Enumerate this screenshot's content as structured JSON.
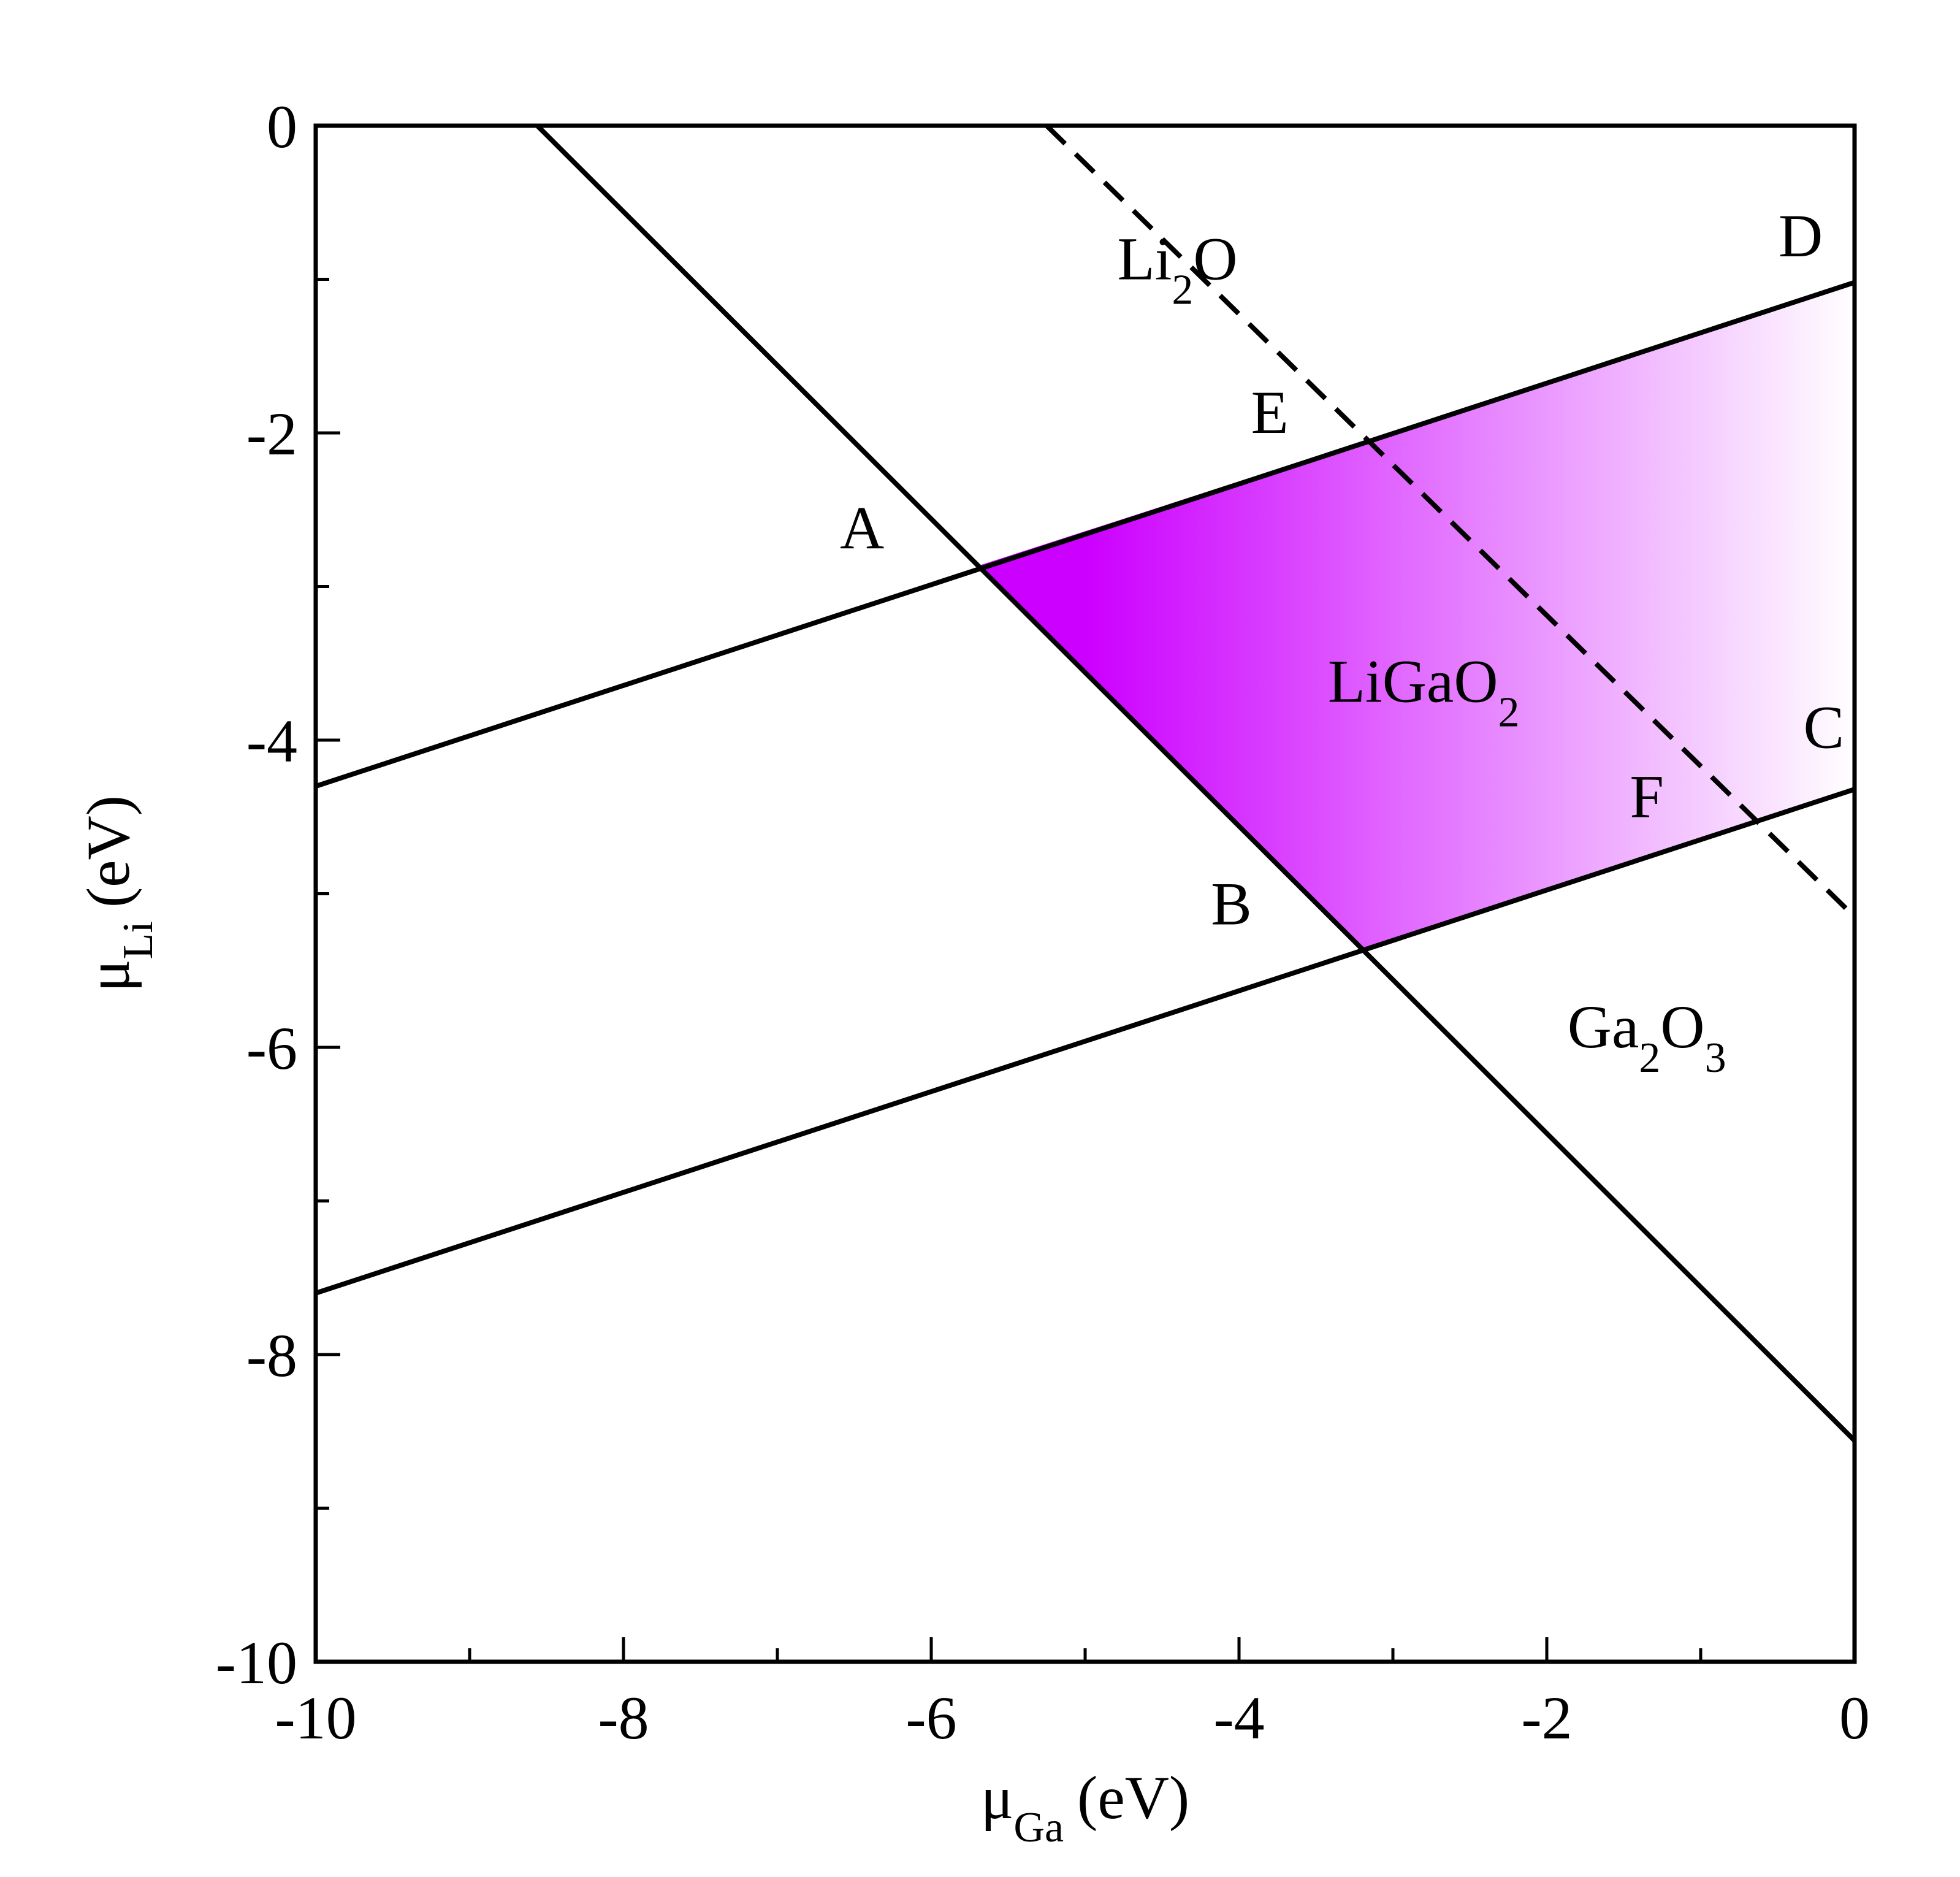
{
  "chart_data": {
    "type": "line",
    "xlim": [
      -10,
      0
    ],
    "ylim": [
      -10,
      0
    ],
    "xticks": [
      -10,
      -8,
      -6,
      -4,
      -2,
      0
    ],
    "yticks": [
      -10,
      -8,
      -6,
      -4,
      -2,
      0
    ],
    "xtick_labels": [
      "-10",
      "-8",
      "-6",
      "-4",
      "-2",
      "0"
    ],
    "ytick_labels": [
      "-10",
      "-8",
      "-6",
      "-4",
      "-2",
      "0"
    ],
    "xminor_step": 1,
    "yminor_step": 1,
    "xlabel": {
      "symbol": "μ",
      "sub": "Ga",
      "unit": "(eV)"
    },
    "ylabel": {
      "symbol": "μ",
      "sub": "Li",
      "unit": "(eV)"
    },
    "grid": false,
    "series": [
      {
        "style": "solid",
        "points": [
          [
            -8.56,
            0
          ],
          [
            0,
            -8.56
          ]
        ]
      },
      {
        "style": "solid",
        "points": [
          [
            -10,
            -4.3
          ],
          [
            0,
            -1.02
          ]
        ]
      },
      {
        "style": "solid",
        "points": [
          [
            -10,
            -7.6
          ],
          [
            0,
            -4.32
          ]
        ]
      },
      {
        "style": "dashed",
        "points": [
          [
            -5.25,
            0
          ],
          [
            0,
            -5.15
          ]
        ]
      }
    ],
    "shaded_region": {
      "label_base": "LiGaO",
      "label_sub": "2",
      "vertices": [
        [
          -5.71,
          -2.87
        ],
        [
          0,
          -1.02
        ],
        [
          0,
          -4.32
        ],
        [
          -3.21,
          -5.37
        ]
      ],
      "color_dark": "#cc00ff",
      "color_light": "#ffffff"
    },
    "region_labels": [
      {
        "parts": [
          [
            "Li",
            ""
          ],
          [
            "2",
            "sub"
          ],
          [
            "O",
            ""
          ]
        ],
        "x": -4.4,
        "y": -1.0
      },
      {
        "parts": [
          [
            "LiGaO",
            ""
          ],
          [
            "2",
            "sub"
          ]
        ],
        "x": -2.8,
        "y": -3.75
      },
      {
        "parts": [
          [
            "Ga",
            ""
          ],
          [
            "2",
            "sub"
          ],
          [
            "O",
            ""
          ],
          [
            "3",
            "sub"
          ]
        ],
        "x": -1.35,
        "y": -6.0
      }
    ],
    "point_labels": [
      {
        "text": "A",
        "x": -6.45,
        "y": -2.75
      },
      {
        "text": "B",
        "x": -4.05,
        "y": -5.2
      },
      {
        "text": "C",
        "x": -0.2,
        "y": -4.05
      },
      {
        "text": "D",
        "x": -0.35,
        "y": -0.85
      },
      {
        "text": "E",
        "x": -3.8,
        "y": -2.0
      },
      {
        "text": "F",
        "x": -1.35,
        "y": -4.5
      }
    ]
  }
}
